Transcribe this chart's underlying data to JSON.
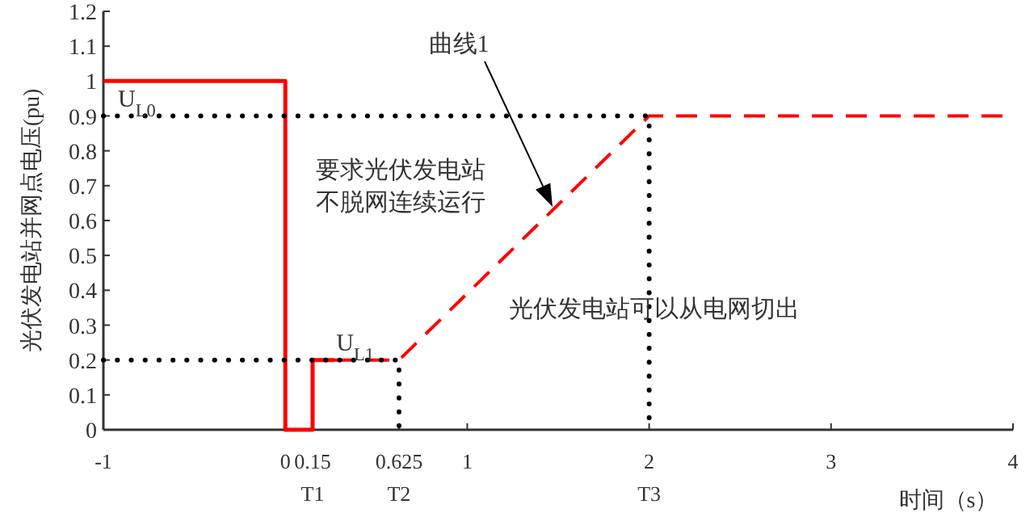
{
  "chart_data": {
    "type": "line",
    "xlabel": "时间（s）",
    "ylabel": "光伏发电站并网点电压(pu)",
    "xlim": [
      -1,
      4
    ],
    "ylim": [
      0,
      1.2
    ],
    "xticks": [
      -1,
      0,
      {
        "value": 0.15,
        "label": "0.15\nT1"
      },
      {
        "value": 0.625,
        "label": "0.625\nT2"
      },
      1,
      {
        "value": 2,
        "label": "2\nT3"
      },
      3,
      4
    ],
    "yticks": [
      0,
      0.1,
      0.2,
      0.3,
      0.4,
      0.5,
      0.6,
      0.7,
      0.8,
      0.9,
      1,
      1.1,
      1.2
    ],
    "grid": false,
    "series": [
      {
        "color": "#ff0000",
        "line_style": "solid",
        "x": [
          -1,
          0,
          0,
          0.15,
          0.15,
          0.27
        ],
        "values": [
          1,
          1,
          0,
          0,
          0.2,
          0.2
        ]
      },
      {
        "color": "#ff0000",
        "line_style": "dashed",
        "x": [
          0.27,
          0.625,
          2,
          4
        ],
        "values": [
          0.2,
          0.2,
          0.9,
          0.9
        ]
      },
      {
        "color": "#000000",
        "line_style": "dotted",
        "x": [
          -1,
          2,
          2
        ],
        "values": [
          0.9,
          0.9,
          0
        ]
      },
      {
        "color": "#000000",
        "line_style": "dotted",
        "x": [
          -1,
          0.625,
          0.625
        ],
        "values": [
          0.2,
          0.2,
          0
        ]
      }
    ],
    "annotations": [
      {
        "text": "U$_{L0}$",
        "x": -0.92,
        "y": 0.9
      },
      {
        "text": "U$_{L1}$",
        "x": 0.28,
        "y": 0.2
      },
      "曲线1",
      "要求光伏发电站",
      "不脱网连续运行",
      "光伏发电站可以从电网切出"
    ]
  }
}
